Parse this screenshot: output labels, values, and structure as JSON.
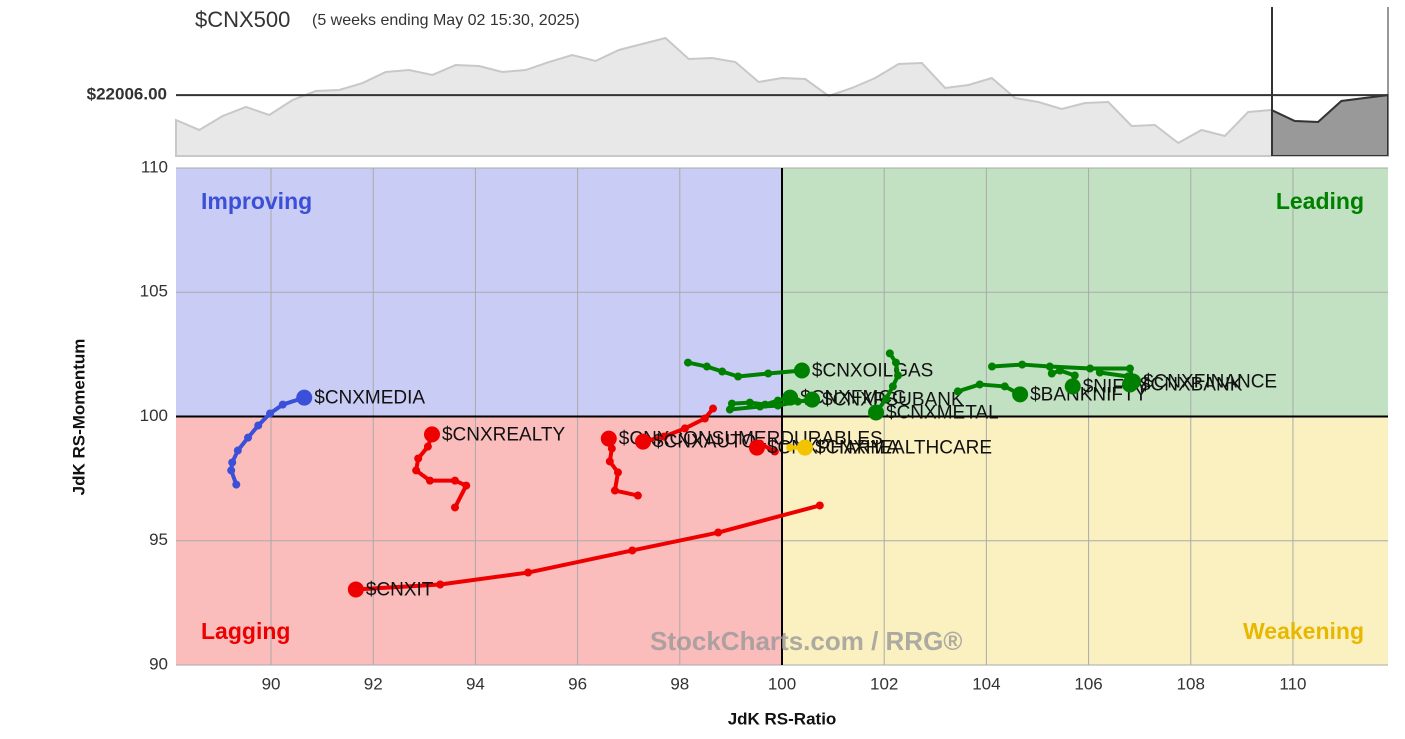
{
  "chart_data": {
    "type": "rrg",
    "title": "$CNX500",
    "subtitle": "(5 weeks ending May 02 15:30, 2025)",
    "x_label": "JdK RS-Ratio",
    "y_label": "JdK RS-Momentum",
    "quadrants": {
      "improving": "Improving",
      "leading": "Leading",
      "lagging": "Lagging",
      "weakening": "Weakening"
    },
    "watermark": "StockCharts.com / RRG®",
    "xlim": [
      88.14,
      111.86
    ],
    "ylim": [
      90,
      110
    ],
    "xticks": [
      90,
      92,
      94,
      96,
      98,
      100,
      102,
      104,
      106,
      108,
      110
    ],
    "yticks": [
      90,
      95,
      100,
      105,
      110
    ],
    "center": {
      "x": 100,
      "y": 100
    },
    "grid": true,
    "price_chart": {
      "ylim": [
        21000,
        22950
      ],
      "reference": {
        "value": 22006,
        "label": "$22006.00"
      },
      "values": [
        21595,
        21430,
        21661,
        21810,
        21678,
        21925,
        22074,
        22091,
        22206,
        22388,
        22421,
        22339,
        22504,
        22487,
        22388,
        22421,
        22553,
        22669,
        22570,
        22752,
        22851,
        22950,
        22603,
        22619,
        22553,
        22223,
        22289,
        22272,
        21992,
        22124,
        22289,
        22520,
        22537,
        22124,
        22173,
        22289,
        21958,
        21892,
        21777,
        21876,
        21892,
        21496,
        21512,
        21215,
        21430,
        21331,
        21727,
        21760,
        21578,
        21562,
        21909,
        21958,
        22006
      ]
    },
    "series": [
      {
        "name": "$CNXMEDIA",
        "color": "#3b4fd8",
        "x": [
          89.32,
          89.22,
          89.24,
          89.35,
          89.55,
          89.75,
          89.98,
          90.23,
          90.65
        ],
        "y": [
          97.26,
          97.83,
          98.15,
          98.63,
          99.15,
          99.64,
          100.12,
          100.48,
          100.76
        ]
      },
      {
        "name": "$CNXREALTY",
        "color": "#ee0000",
        "x": [
          93.6,
          93.82,
          93.6,
          93.11,
          92.84,
          92.88,
          93.07,
          93.15
        ],
        "y": [
          96.34,
          97.22,
          97.42,
          97.42,
          97.83,
          98.31,
          98.79,
          99.28
        ]
      },
      {
        "name": "$CNXIT",
        "color": "#ee0000",
        "x": [
          100.74,
          98.75,
          97.07,
          95.03,
          93.31,
          91.66
        ],
        "y": [
          96.42,
          95.33,
          94.61,
          93.72,
          93.24,
          93.04
        ]
      },
      {
        "name": "$CNXCONSUMERDURABLES",
        "color": "#ee0000",
        "x": [
          97.18,
          96.73,
          96.79,
          96.63,
          96.67,
          96.61
        ],
        "y": [
          96.82,
          97.02,
          97.75,
          98.19,
          98.71,
          99.11
        ]
      },
      {
        "name": "$CNXAUTO",
        "color": "#ee0000",
        "x": [
          98.65,
          98.49,
          98.1,
          97.69,
          97.28
        ],
        "y": [
          100.32,
          99.92,
          99.52,
          99.19,
          98.99
        ]
      },
      {
        "name": "$CNXPHARMA",
        "color": "#ee0000",
        "x": [
          99.86,
          99.57,
          99.51
        ],
        "y": [
          98.59,
          98.91,
          98.75
        ]
      },
      {
        "name": "$CNXHEALTHCARE",
        "color": "#f2c400",
        "x": [
          100.16,
          100.45
        ],
        "y": [
          98.75,
          98.75
        ]
      },
      {
        "name": "$CNXOILGAS",
        "color": "#008000",
        "x": [
          98.16,
          98.53,
          98.83,
          99.14,
          99.73,
          100.39
        ],
        "y": [
          102.17,
          102.01,
          101.81,
          101.61,
          101.73,
          101.85
        ]
      },
      {
        "name": "$CNXFMCG",
        "color": "#008000",
        "x": [
          99.02,
          99.37,
          99.67,
          99.92,
          100.16
        ],
        "y": [
          100.52,
          100.56,
          100.48,
          100.64,
          100.76
        ]
      },
      {
        "name": "$CNXPSUBANK",
        "color": "#008000",
        "x": [
          98.98,
          99.57,
          99.92,
          100.31,
          100.59
        ],
        "y": [
          100.28,
          100.4,
          100.44,
          100.6,
          100.68
        ]
      },
      {
        "name": "$CNXMETAL",
        "color": "#008000",
        "x": [
          102.11,
          102.23,
          102.27,
          102.17,
          102.04,
          101.84
        ],
        "y": [
          102.54,
          102.17,
          101.65,
          101.21,
          100.72,
          100.16
        ]
      },
      {
        "name": "$BANKNIFTY",
        "color": "#008000",
        "x": [
          103.44,
          103.87,
          104.36,
          104.66
        ],
        "y": [
          101.01,
          101.29,
          101.21,
          100.89
        ]
      },
      {
        "name": "$NIFTY",
        "color": "#008000",
        "x": [
          105.28,
          105.44,
          105.73,
          105.69
        ],
        "y": [
          101.73,
          101.85,
          101.65,
          101.21
        ]
      },
      {
        "name": "$CNXFINANCE",
        "color": "#008000",
        "x": [
          104.11,
          104.7,
          105.24,
          106.03,
          106.81,
          106.87
        ],
        "y": [
          102.01,
          102.09,
          102.01,
          101.93,
          101.93,
          101.41
        ]
      },
      {
        "name": "$CNXBANK",
        "color": "#008000",
        "x": [
          106.22,
          106.77,
          106.81
        ],
        "y": [
          101.77,
          101.61,
          101.29
        ]
      }
    ]
  }
}
